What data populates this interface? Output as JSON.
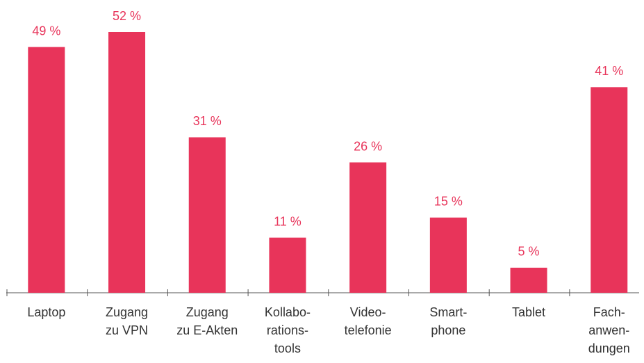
{
  "chart_data": {
    "type": "bar",
    "categories": [
      [
        "Laptop"
      ],
      [
        "Zugang",
        "zu VPN"
      ],
      [
        "Zugang",
        "zu E-Akten"
      ],
      [
        "Kollabo-",
        "rations-",
        "tools"
      ],
      [
        "Video-",
        "telefonie"
      ],
      [
        "Smart-",
        "phone"
      ],
      [
        "Tablet"
      ],
      [
        "Fach-",
        "anwen-",
        "dungen"
      ]
    ],
    "values": [
      49,
      52,
      31,
      11,
      26,
      15,
      5,
      41
    ],
    "value_labels": [
      "49 %",
      "52 %",
      "31 %",
      "11 %",
      "26 %",
      "15 %",
      "5 %",
      "41 %"
    ],
    "color": "#e8345a"
  }
}
